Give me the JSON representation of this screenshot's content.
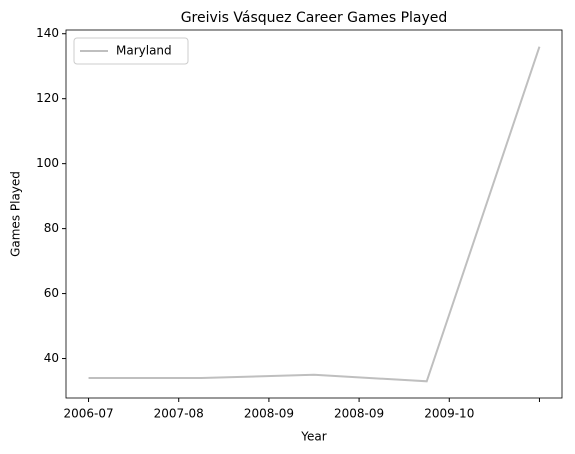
{
  "chart_data": {
    "type": "line",
    "title": "Greivis Vásquez Career Games Played",
    "xlabel": "Year",
    "ylabel": "Games Played",
    "x": [
      0,
      1,
      2,
      3,
      4
    ],
    "series": [
      {
        "name": "Maryland",
        "color": "#bfbfbf",
        "values": [
          34,
          34,
          35,
          33,
          136
        ]
      }
    ],
    "xlim": [
      -0.2,
      4.2
    ],
    "xticks": [
      {
        "value": 0,
        "label": "2006-07"
      },
      {
        "value": 0.8,
        "label": "2007-08"
      },
      {
        "value": 1.6,
        "label": "2008-09"
      },
      {
        "value": 2.4,
        "label": "2008-09"
      },
      {
        "value": 3.2,
        "label": "2009-10"
      },
      {
        "value": 4,
        "label": null
      }
    ],
    "ylim": [
      27.85,
      141.15
    ],
    "yticks": [
      40,
      60,
      80,
      100,
      120,
      140
    ],
    "legend": "upper left",
    "grid": false
  }
}
